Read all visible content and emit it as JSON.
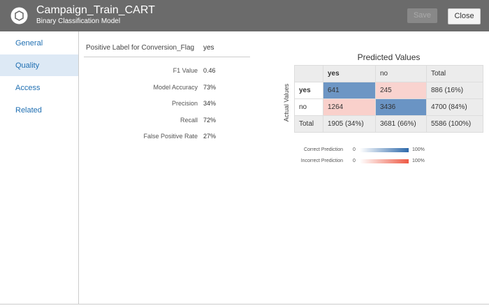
{
  "header": {
    "title": "Campaign_Train_CART",
    "subtitle": "Binary Classification Model",
    "buttons": [
      "Save",
      "Close"
    ]
  },
  "sidebar": {
    "items": [
      "General",
      "Quality",
      "Access",
      "Related"
    ]
  },
  "positive_label": {
    "label": "Positive Label for Conversion_Flag",
    "value": "yes"
  },
  "metrics": [
    {
      "label": "F1 Value",
      "value": "0.46"
    },
    {
      "label": "Model Accuracy",
      "value": "73%"
    },
    {
      "label": "Precision",
      "value": "34%"
    },
    {
      "label": "Recall",
      "value": "72%"
    },
    {
      "label": "False Positive Rate",
      "value": "27%"
    }
  ],
  "matrix": {
    "title": "Predicted Values",
    "axis_label": "Actual Values",
    "columns": [
      "yes",
      "no",
      "Total"
    ],
    "rows": [
      {
        "label": "yes",
        "cells": [
          "641",
          "245",
          "886 (16%)"
        ]
      },
      {
        "label": "no",
        "cells": [
          "1264",
          "3436",
          "4700 (84%)"
        ]
      },
      {
        "label": "Total",
        "cells": [
          "1905 (34%)",
          "3681 (66%)",
          "5586 (100%)"
        ]
      }
    ]
  },
  "legend": [
    {
      "label": "Correct Prediction",
      "min": "0",
      "max": "100%"
    },
    {
      "label": "Incorrect Prediction",
      "min": "0",
      "max": "100%"
    }
  ]
}
